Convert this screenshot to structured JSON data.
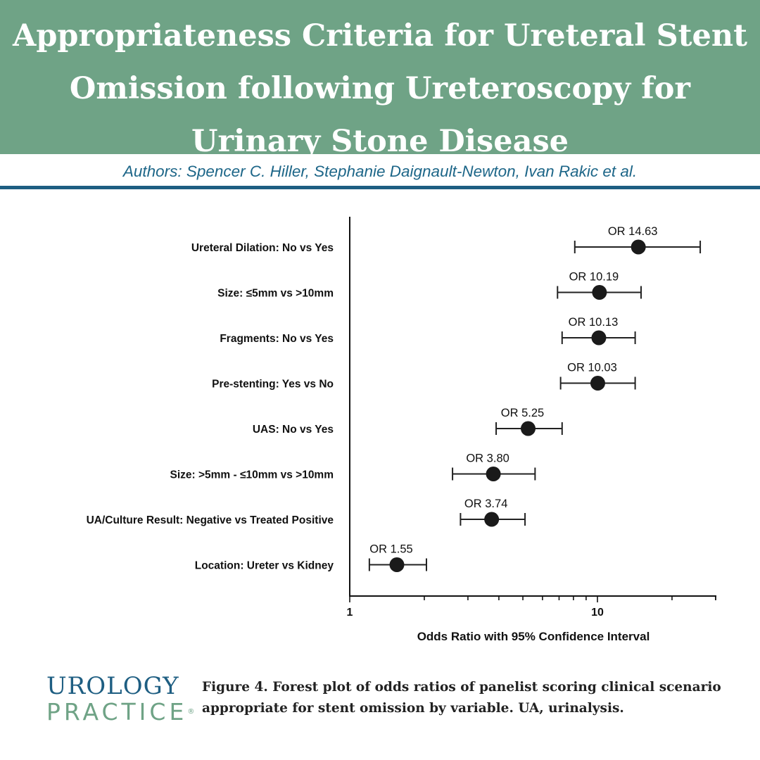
{
  "header": {
    "title": "Appropriateness Criteria for Ureteral Stent Omission following Ureteroscopy for Urinary Stone Disease",
    "authors": "Authors: Spencer C. Hiller, Stephanie Daignault-Newton, Ivan Rakic et al."
  },
  "colors": {
    "banner": "#6fa386",
    "accent_blue": "#1e5e82",
    "marker": "#1a1a1a"
  },
  "chart_data": {
    "type": "forest",
    "xlabel": "Odds Ratio with 95% Confidence Interval",
    "xscale": "log",
    "xlim": [
      1,
      30
    ],
    "xticks": [
      1,
      10
    ],
    "xtick_labels": [
      "1",
      "10"
    ],
    "rows": [
      {
        "label": "Ureteral Dilation: No vs Yes",
        "or": 14.63,
        "or_label": "OR 14.63",
        "ci": [
          8.1,
          26.0
        ]
      },
      {
        "label": "Size: ≤5mm vs >10mm",
        "or": 10.19,
        "or_label": "OR 10.19",
        "ci": [
          6.9,
          15.0
        ]
      },
      {
        "label": "Fragments: No vs Yes",
        "or": 10.13,
        "or_label": "OR 10.13",
        "ci": [
          7.2,
          14.2
        ]
      },
      {
        "label": "Pre-stenting: Yes vs No",
        "or": 10.03,
        "or_label": "OR 10.03",
        "ci": [
          7.1,
          14.2
        ]
      },
      {
        "label": "UAS: No vs Yes",
        "or": 5.25,
        "or_label": "OR 5.25",
        "ci": [
          3.9,
          7.2
        ]
      },
      {
        "label": "Size: >5mm - ≤10mm vs >10mm",
        "or": 3.8,
        "or_label": "OR 3.80",
        "ci": [
          2.6,
          5.6
        ]
      },
      {
        "label": "UA/Culture Result: Negative vs Treated Positive",
        "or": 3.74,
        "or_label": "OR 3.74",
        "ci": [
          2.8,
          5.1
        ]
      },
      {
        "label": "Location: Ureter vs Kidney",
        "or": 1.55,
        "or_label": "OR 1.55",
        "ci": [
          1.2,
          2.04
        ]
      }
    ]
  },
  "footer": {
    "logo_top": "UROLOGY",
    "logo_bottom": "PRACTICE",
    "logo_mark": "®",
    "caption": "Figure 4. Forest plot of odds ratios of panelist scoring clinical scenario appropriate for stent omission by variable. UA, urinalysis."
  }
}
